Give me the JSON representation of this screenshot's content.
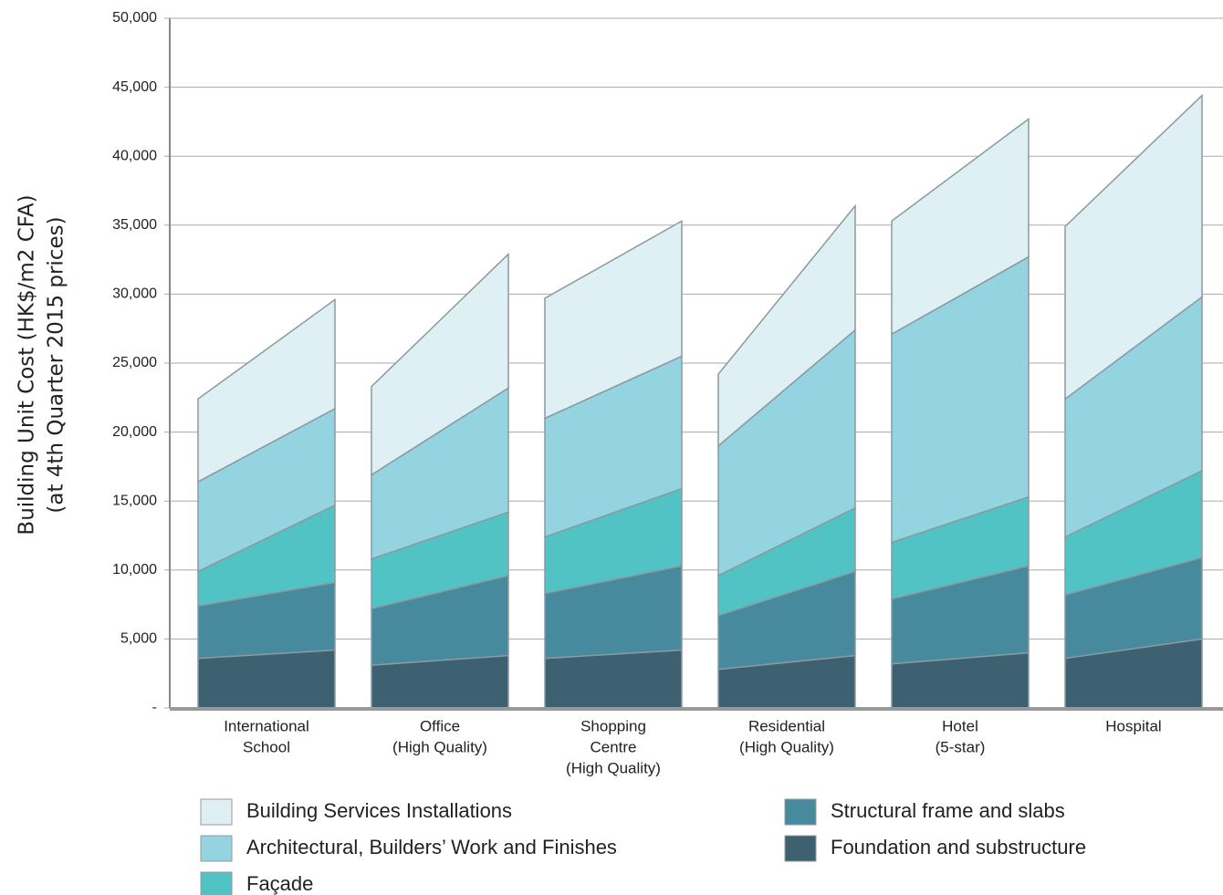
{
  "chart_data": {
    "type": "stacked-range",
    "y_label": [
      "Building Unit Cost (HK$/m2 CFA)",
      "(at 4th Quarter 2015 prices)"
    ],
    "categories": [
      [
        "International",
        "School"
      ],
      [
        "Office",
        "(High Quality)"
      ],
      [
        "Shopping",
        "Centre",
        "(High Quality)"
      ],
      [
        "Residential",
        "(High Quality)"
      ],
      [
        "Hotel",
        "(5-star)"
      ],
      [
        "Hospital"
      ]
    ],
    "series": [
      {
        "name": "Foundation and substructure",
        "color": "#3d6170",
        "low": [
          3600,
          3100,
          3600,
          2800,
          3200,
          3600
        ],
        "high": [
          4200,
          3800,
          4200,
          3800,
          4000,
          5000
        ]
      },
      {
        "name": "Structural frame and slabs",
        "color": "#478a9e",
        "low": [
          3800,
          4100,
          4700,
          3900,
          4700,
          4600
        ],
        "high": [
          4900,
          5800,
          6100,
          6100,
          6300,
          5900
        ]
      },
      {
        "name": "Façade",
        "color": "#52c3c4",
        "low": [
          2500,
          3600,
          4100,
          2900,
          4100,
          4200
        ],
        "high": [
          5600,
          4600,
          5600,
          4600,
          5000,
          6300
        ]
      },
      {
        "name": "Architectural, Builders’ Work and Finishes",
        "color": "#94d3e0",
        "low": [
          6500,
          6100,
          8600,
          9400,
          15100,
          10000
        ],
        "high": [
          7000,
          9000,
          9600,
          12900,
          17400,
          12600
        ]
      },
      {
        "name": "Building Services Installations",
        "color": "#dff0f4",
        "low": [
          6000,
          6400,
          8700,
          5200,
          8200,
          12500
        ],
        "high": [
          7900,
          9700,
          9800,
          9000,
          10000,
          14600
        ]
      }
    ],
    "ylim": [
      0,
      50000
    ],
    "yticks": [
      {
        "value": 0,
        "label": "-"
      },
      {
        "value": 5000,
        "label": "5,000"
      },
      {
        "value": 10000,
        "label": "10,000"
      },
      {
        "value": 15000,
        "label": "15,000"
      },
      {
        "value": 20000,
        "label": "20,000"
      },
      {
        "value": 25000,
        "label": "25,000"
      },
      {
        "value": 30000,
        "label": "30,000"
      },
      {
        "value": 35000,
        "label": "35,000"
      },
      {
        "value": 40000,
        "label": "40,000"
      },
      {
        "value": 45000,
        "label": "45,000"
      },
      {
        "value": 50000,
        "label": "50,000"
      }
    ],
    "grid": true
  }
}
